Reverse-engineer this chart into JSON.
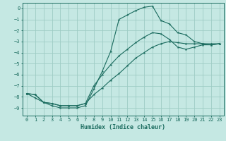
{
  "xlabel": "Humidex (Indice chaleur)",
  "xlim": [
    -0.5,
    23.5
  ],
  "ylim": [
    -9.7,
    0.5
  ],
  "yticks": [
    0,
    -1,
    -2,
    -3,
    -4,
    -5,
    -6,
    -7,
    -8,
    -9
  ],
  "xticks": [
    0,
    1,
    2,
    3,
    4,
    5,
    6,
    7,
    8,
    9,
    10,
    11,
    12,
    13,
    14,
    15,
    16,
    17,
    18,
    19,
    20,
    21,
    22,
    23
  ],
  "bg_color": "#c5e8e3",
  "grid_color": "#9eccc5",
  "line_color": "#1a6b5e",
  "line1_x": [
    0,
    1,
    2,
    3,
    4,
    5,
    6,
    7,
    8,
    9,
    10,
    11,
    12,
    13,
    14,
    15,
    16,
    17,
    18,
    19,
    20,
    21,
    22,
    23
  ],
  "line1_y": [
    -7.7,
    -8.1,
    -8.5,
    -8.8,
    -9.0,
    -9.0,
    -9.0,
    -8.8,
    -7.3,
    -5.7,
    -3.9,
    -1.0,
    -0.6,
    -0.2,
    0.1,
    0.2,
    -1.1,
    -1.4,
    -2.2,
    -2.4,
    -3.0,
    -3.2,
    -3.3,
    -3.2
  ],
  "line2_x": [
    0,
    1,
    2,
    3,
    4,
    5,
    6,
    7,
    8,
    9,
    10,
    11,
    12,
    13,
    14,
    15,
    16,
    17,
    18,
    19,
    20,
    21,
    22,
    23
  ],
  "line2_y": [
    -7.7,
    -7.8,
    -8.5,
    -8.6,
    -8.8,
    -8.8,
    -8.8,
    -8.6,
    -7.8,
    -7.2,
    -6.5,
    -5.9,
    -5.2,
    -4.5,
    -4.0,
    -3.5,
    -3.2,
    -3.0,
    -3.1,
    -3.2,
    -3.2,
    -3.2,
    -3.2,
    -3.2
  ],
  "line3_x": [
    0,
    1,
    2,
    3,
    4,
    5,
    6,
    7,
    8,
    9,
    10,
    11,
    12,
    13,
    14,
    15,
    16,
    17,
    18,
    19,
    20,
    21,
    22,
    23
  ],
  "line3_y": [
    -7.7,
    -7.8,
    -8.5,
    -8.6,
    -8.8,
    -8.8,
    -8.8,
    -8.6,
    -7.0,
    -6.0,
    -5.1,
    -4.3,
    -3.7,
    -3.1,
    -2.6,
    -2.2,
    -2.3,
    -2.8,
    -3.5,
    -3.7,
    -3.5,
    -3.3,
    -3.3,
    -3.2
  ]
}
